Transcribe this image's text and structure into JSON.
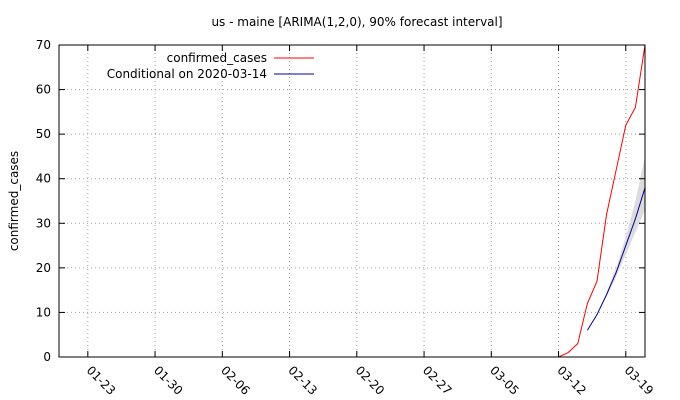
{
  "chart_data": {
    "type": "line",
    "title": "us - maine [ARIMA(1,2,0), 90% forecast interval]",
    "xlabel": "",
    "ylabel": "confirmed_cases",
    "x_axis": {
      "type": "date",
      "range": [
        "2020-01-20",
        "2020-03-21"
      ],
      "ticks": [
        {
          "date": "2020-01-23",
          "label": "01-23"
        },
        {
          "date": "2020-01-30",
          "label": "01-30"
        },
        {
          "date": "2020-02-06",
          "label": "02-06"
        },
        {
          "date": "2020-02-13",
          "label": "02-13"
        },
        {
          "date": "2020-02-20",
          "label": "02-20"
        },
        {
          "date": "2020-02-27",
          "label": "02-27"
        },
        {
          "date": "2020-03-05",
          "label": "03-05"
        },
        {
          "date": "2020-03-12",
          "label": "03-12"
        },
        {
          "date": "2020-03-19",
          "label": "03-19"
        }
      ]
    },
    "y_axis": {
      "range": [
        0,
        70
      ],
      "ticks": [
        0,
        10,
        20,
        30,
        40,
        50,
        60,
        70
      ]
    },
    "grid": true,
    "legend_position": "top-left",
    "series": [
      {
        "name": "confirmed_cases",
        "color": "#ff0000",
        "points": [
          {
            "x": "2020-03-12",
            "y": 0
          },
          {
            "x": "2020-03-13",
            "y": 1
          },
          {
            "x": "2020-03-14",
            "y": 3
          },
          {
            "x": "2020-03-15",
            "y": 12
          },
          {
            "x": "2020-03-16",
            "y": 17
          },
          {
            "x": "2020-03-17",
            "y": 32
          },
          {
            "x": "2020-03-18",
            "y": 42
          },
          {
            "x": "2020-03-19",
            "y": 52
          },
          {
            "x": "2020-03-20",
            "y": 56
          },
          {
            "x": "2020-03-21",
            "y": 70
          }
        ]
      },
      {
        "name": "Conditional on 2020-03-14",
        "color": "#0000a0",
        "points": [
          {
            "x": "2020-03-15",
            "y": 6
          },
          {
            "x": "2020-03-16",
            "y": 9.5
          },
          {
            "x": "2020-03-17",
            "y": 14
          },
          {
            "x": "2020-03-18",
            "y": 19
          },
          {
            "x": "2020-03-19",
            "y": 25
          },
          {
            "x": "2020-03-20",
            "y": 31
          },
          {
            "x": "2020-03-21",
            "y": 38
          }
        ],
        "interval": {
          "color": "#dcdcdc",
          "lower": [
            6,
            9.3,
            13.5,
            18,
            23,
            28,
            33
          ],
          "upper": [
            6,
            9.7,
            14.5,
            20,
            27,
            35,
            45
          ]
        }
      }
    ]
  }
}
